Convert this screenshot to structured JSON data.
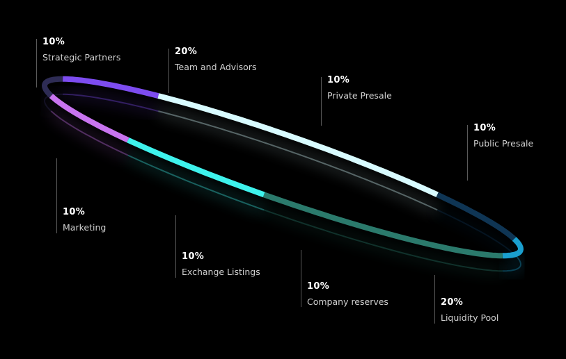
{
  "chart_data": {
    "type": "pie",
    "slices": [
      {
        "label": "Strategic Partners",
        "percent_text": "10%",
        "value": 10,
        "color": "#7d4cf0"
      },
      {
        "label": "Team and Advisors",
        "percent_text": "20%",
        "value": 20,
        "color": "#d8fbff"
      },
      {
        "label": "Private Presale",
        "percent_text": "10%",
        "value": 10,
        "color": "#0f3554"
      },
      {
        "label": "Public Presale",
        "percent_text": "10%",
        "value": 10,
        "color": "#1a9fcf"
      },
      {
        "label": "Liquidity Pool",
        "percent_text": "20%",
        "value": 20,
        "color": "#2b7a6c"
      },
      {
        "label": "Company reserves",
        "percent_text": "10%",
        "value": 10,
        "color": "#3ef2ec"
      },
      {
        "label": "Exchange Listings",
        "percent_text": "10%",
        "value": 10,
        "color": "#c874ef"
      },
      {
        "label": "Marketing",
        "percent_text": "10%",
        "value": 10,
        "color": "#2e2c55"
      }
    ]
  },
  "colors": {
    "background": "#000000",
    "leader_line": "#5a5a5a"
  }
}
